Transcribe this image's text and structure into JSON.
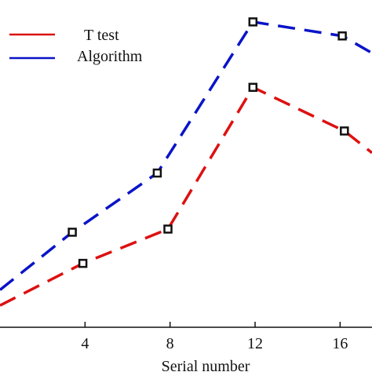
{
  "chart_data": {
    "type": "line",
    "title": "",
    "xlabel": "Serial number",
    "ylabel": "",
    "xlim": [
      0,
      17.5
    ],
    "ylim": [
      0,
      100
    ],
    "xticks": [
      4,
      8,
      12,
      16
    ],
    "xtick_labels": [
      "4",
      "8",
      "12",
      "16"
    ],
    "grid": false,
    "legend_position": "top-left",
    "series": [
      {
        "name": "T test",
        "color": "#dd1111",
        "line_style": "dashed",
        "marker": "square-open",
        "x": [
          0,
          3.9,
          7.9,
          11.9,
          16.2,
          17.5
        ],
        "y": [
          7,
          20.5,
          31.5,
          77,
          63,
          56
        ],
        "marker_points": [
          1,
          2,
          3,
          4
        ]
      },
      {
        "name": "Algorithm",
        "color": "#0a14c8",
        "line_style": "dashed",
        "marker": "square-open",
        "x": [
          0,
          3.4,
          7.4,
          11.9,
          16.1,
          17.5
        ],
        "y": [
          12,
          30.5,
          49.5,
          98,
          93.5,
          88
        ],
        "marker_points": [
          1,
          2,
          3,
          4
        ]
      }
    ]
  }
}
